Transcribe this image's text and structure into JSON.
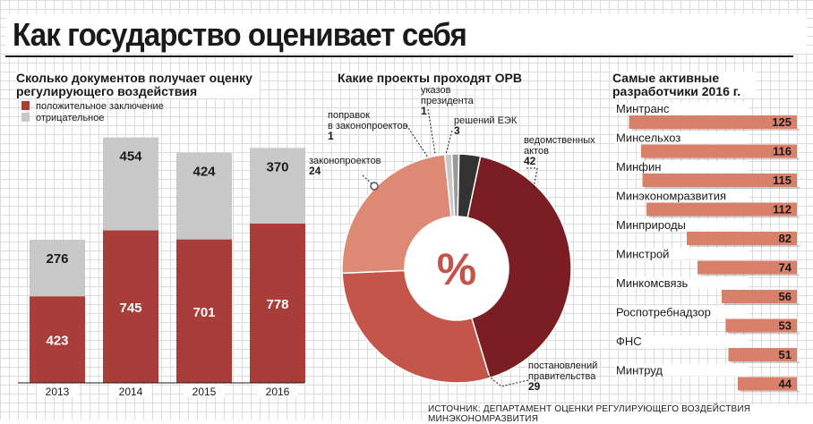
{
  "title": "Как государство оценивает себя",
  "source": "ИСТОЧНИК: ДЕПАРТАМЕНТ ОЦЕНКИ РЕГУЛИРУЮЩЕГО ВОЗДЕЙСТВИЯ МИНЭКОНОМРАЗВИТИЯ",
  "colors": {
    "positive": "#a83d3a",
    "negative": "#c8c8c8",
    "bar": "#d9806a",
    "dark": "#7b1e24",
    "medium": "#c4554b",
    "light": "#dc8a74",
    "gray": "#999999",
    "black": "#333333"
  },
  "chart_data": [
    {
      "type": "bar",
      "title": "Сколько документов получает оценку регулирующего воздействия",
      "categories": [
        "2013",
        "2014",
        "2015",
        "2016"
      ],
      "series": [
        {
          "name": "положительное заключение",
          "values": [
            423,
            745,
            701,
            778
          ]
        },
        {
          "name": "отрицательное",
          "values": [
            276,
            454,
            424,
            370
          ]
        }
      ],
      "legend": "top-left"
    },
    {
      "type": "pie",
      "title": "Какие проекты проходят ОРВ",
      "center_label": "%",
      "slices": [
        {
          "label": "ведомственных актов",
          "value": 42
        },
        {
          "label": "постановлений правительства",
          "value": 29
        },
        {
          "label": "законопроектов",
          "value": 24
        },
        {
          "label": "поправок в законопроектов",
          "value": 1
        },
        {
          "label": "указов президента",
          "value": 1
        },
        {
          "label": "решений ЕЭК",
          "value": 3
        }
      ]
    },
    {
      "type": "bar",
      "title": "Самые активные разработчики 2016 г.",
      "categories": [
        "Минтранс",
        "Минсельхоз",
        "Минфин",
        "Минэкономразвития",
        "Минприроды",
        "Минстрой",
        "Минкомсвязь",
        "Роспотребнадзор",
        "ФНС",
        "Минтруд"
      ],
      "values": [
        125,
        116,
        115,
        112,
        82,
        74,
        56,
        53,
        51,
        44
      ],
      "orientation": "horizontal"
    }
  ]
}
